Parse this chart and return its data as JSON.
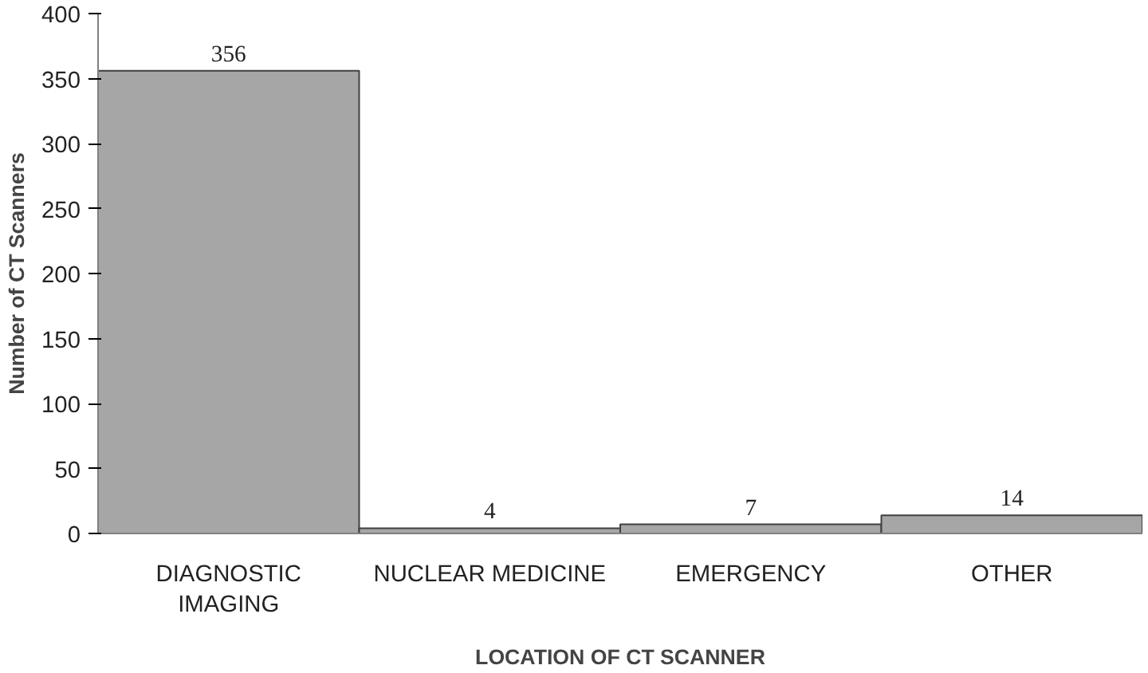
{
  "chart_data": {
    "type": "bar",
    "xlabel": "LOCATION OF CT SCANNER",
    "ylabel": "Number of CT Scanners",
    "categories": [
      "DIAGNOSTIC IMAGING",
      "NUCLEAR MEDICINE",
      "EMERGENCY",
      "OTHER"
    ],
    "values": [
      356,
      4,
      7,
      14
    ],
    "color": "#a6a6a6",
    "ylim": [
      0,
      400
    ],
    "yticks": [
      0,
      50,
      100,
      150,
      200,
      250,
      300,
      350,
      400
    ],
    "grid": false,
    "data_labels": true
  }
}
